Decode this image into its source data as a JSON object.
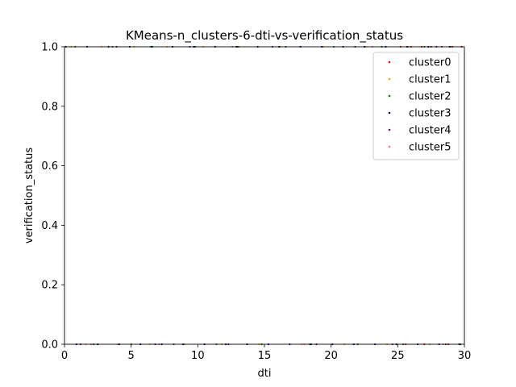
{
  "chart_data": {
    "type": "scatter",
    "title": "KMeans-n_clusters-6-dti-vs-verification_status",
    "xlabel": "dti",
    "ylabel": "verification_status",
    "xlim": [
      0,
      30
    ],
    "ylim": [
      0,
      1
    ],
    "xticks": [
      0,
      5,
      10,
      15,
      20,
      25,
      30
    ],
    "yticks": [
      0.0,
      0.2,
      0.4,
      0.6,
      0.8,
      1.0
    ],
    "xtick_labels": [
      "0",
      "5",
      "10",
      "15",
      "20",
      "25",
      "30"
    ],
    "ytick_labels": [
      "0.0",
      "0.2",
      "0.4",
      "0.6",
      "0.8",
      "1.0"
    ],
    "grid": false,
    "legend_position": "top-right",
    "series": [
      {
        "name": "cluster0",
        "color": "#ff0000",
        "x": [
          25.2,
          26.0,
          26.8,
          27.5,
          28.3,
          29.1,
          29.8,
          25.6,
          27.0,
          28.8
        ],
        "y": [
          1,
          1,
          1,
          1,
          1,
          1,
          1,
          0,
          0,
          0
        ]
      },
      {
        "name": "cluster1",
        "color": "#ffa500",
        "x": [
          0.5,
          1.6,
          2.8,
          4.0,
          5.2,
          6.4,
          7.7,
          9.0,
          10.4,
          11.8,
          13.1,
          14.6,
          16.2,
          17.8,
          19.4,
          21.0,
          22.6,
          24.2,
          25.8,
          27.4,
          29.0
        ],
        "y": [
          1,
          0,
          1,
          0,
          1,
          0,
          1,
          0,
          1,
          0,
          1,
          0,
          1,
          0,
          1,
          0,
          1,
          0,
          1,
          0,
          1
        ]
      },
      {
        "name": "cluster2",
        "color": "#008000",
        "x": [
          0.8,
          2.2,
          3.6,
          5.0,
          6.6,
          8.2,
          9.8,
          11.4,
          13.0,
          14.8,
          16.6,
          18.4,
          20.2,
          22.0,
          23.8,
          25.4,
          27.0,
          28.6,
          29.6
        ],
        "y": [
          1,
          0,
          1,
          0,
          1,
          0,
          1,
          0,
          1,
          0,
          1,
          0,
          1,
          0,
          1,
          0,
          1,
          0,
          0
        ]
      },
      {
        "name": "cluster3",
        "color": "#00008b",
        "x": [
          0.1,
          0.9,
          1.7,
          2.5,
          3.3,
          4.1,
          4.9,
          5.7,
          6.5,
          7.3,
          8.1,
          8.9,
          9.7,
          10.5,
          11.3,
          12.1,
          12.9,
          13.7,
          14.5,
          15.3,
          16.1,
          16.9,
          17.7,
          18.5,
          19.3,
          20.1,
          20.9,
          21.7,
          22.5,
          23.3,
          24.1,
          24.9,
          25.7,
          26.5,
          27.3,
          28.1,
          28.9,
          29.7
        ],
        "y": [
          1,
          0,
          1,
          0,
          1,
          0,
          1,
          0,
          1,
          0,
          1,
          0,
          1,
          0,
          1,
          0,
          1,
          0,
          1,
          0,
          1,
          0,
          1,
          0,
          1,
          0,
          1,
          0,
          1,
          0,
          1,
          0,
          1,
          0,
          1,
          0,
          1,
          0
        ]
      },
      {
        "name": "cluster4",
        "color": "#800080",
        "x": [
          1.2,
          3.9,
          6.8,
          9.4,
          12.3,
          15.6,
          18.9,
          21.8,
          24.6,
          27.9
        ],
        "y": [
          0,
          1,
          0,
          1,
          0,
          1,
          0,
          1,
          0,
          1
        ]
      },
      {
        "name": "cluster5",
        "color": "#ff69b4",
        "x": [
          2.0,
          7.1,
          12.6,
          18.0,
          23.1,
          28.4
        ],
        "y": [
          0,
          0,
          1,
          0,
          1,
          0
        ]
      }
    ]
  }
}
